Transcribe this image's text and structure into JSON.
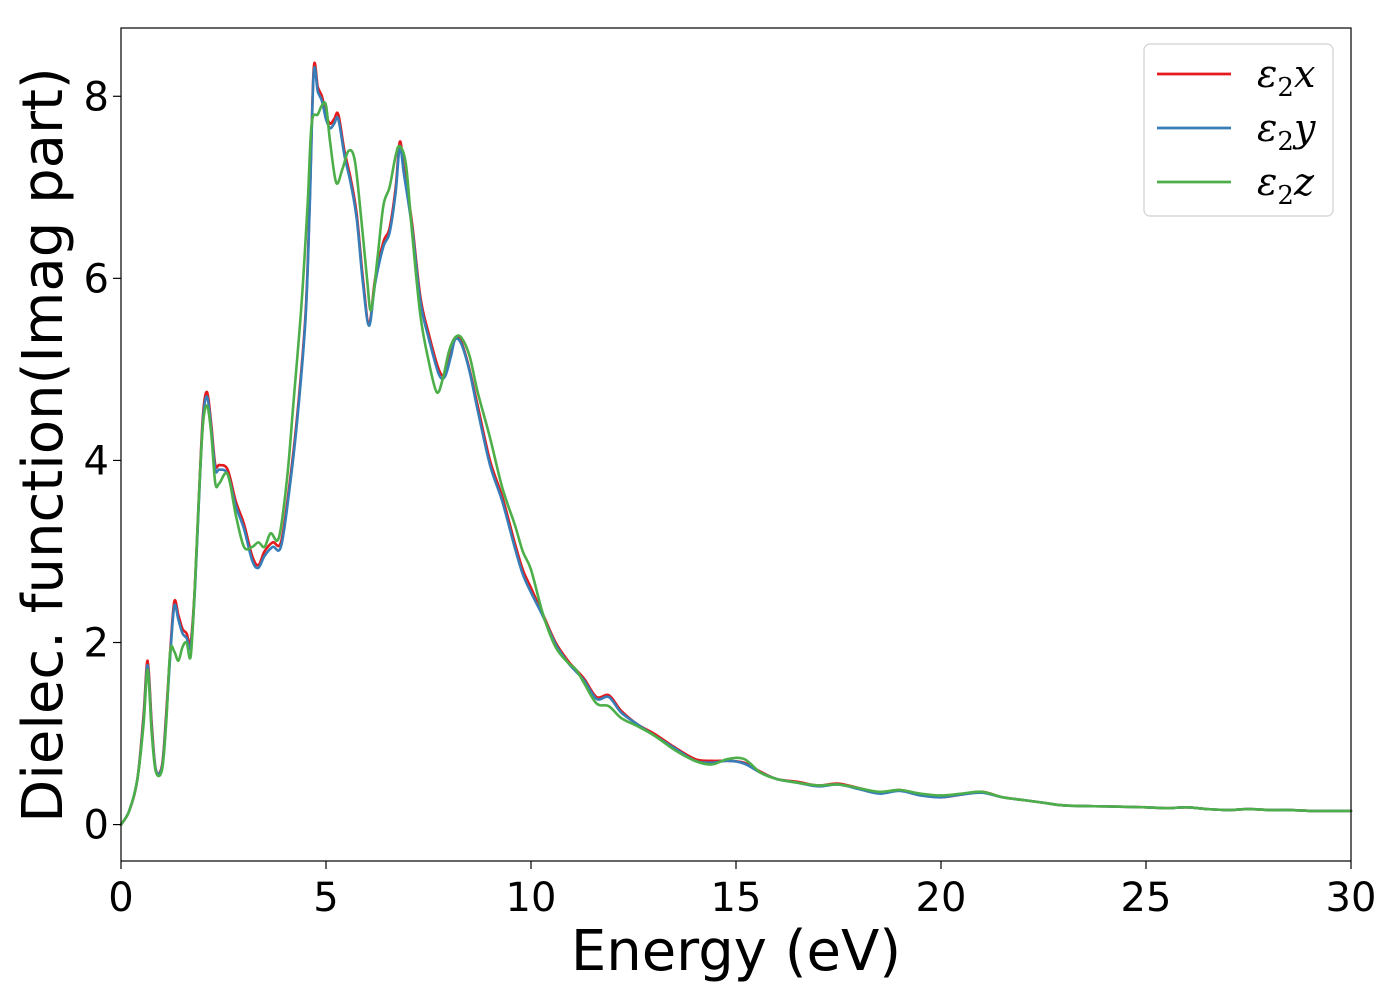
{
  "chart_data": {
    "type": "line",
    "title": "",
    "xlabel": "Energy (eV)",
    "ylabel": "Dielec. function(Imag part)",
    "xlim": [
      0,
      30
    ],
    "ylim": [
      -0.4,
      8.75
    ],
    "xticks": [
      0,
      5,
      10,
      15,
      20,
      25,
      30
    ],
    "yticks": [
      0,
      2,
      4,
      6,
      8
    ],
    "grid": false,
    "legend_position": "top-right",
    "series": [
      {
        "name": "ε2x",
        "legend_base": "ε",
        "legend_sub": "2",
        "legend_var": "x",
        "color": "#e41a1c",
        "x": [
          0,
          0.2,
          0.4,
          0.55,
          0.65,
          0.75,
          0.85,
          1.0,
          1.1,
          1.2,
          1.3,
          1.4,
          1.5,
          1.6,
          1.7,
          1.8,
          1.9,
          2.0,
          2.1,
          2.2,
          2.3,
          2.4,
          2.6,
          2.8,
          3.0,
          3.2,
          3.35,
          3.5,
          3.7,
          3.9,
          4.1,
          4.3,
          4.5,
          4.6,
          4.7,
          4.8,
          4.9,
          5.0,
          5.1,
          5.2,
          5.3,
          5.45,
          5.6,
          5.75,
          5.9,
          6.05,
          6.2,
          6.4,
          6.55,
          6.7,
          6.8,
          6.9,
          7.1,
          7.3,
          7.5,
          7.75,
          7.9,
          8.05,
          8.15,
          8.3,
          8.5,
          8.7,
          9.0,
          9.3,
          9.6,
          9.8,
          10.0,
          10.3,
          10.6,
          10.9,
          11.1,
          11.3,
          11.6,
          11.9,
          12.2,
          12.6,
          13.0,
          13.5,
          14.0,
          14.4,
          14.8,
          15.2,
          15.6,
          16.0,
          16.5,
          17.0,
          17.5,
          18.0,
          18.5,
          19.0,
          19.5,
          20.0,
          20.5,
          21.0,
          21.5,
          22.0,
          22.5,
          23.0,
          24.0,
          25.0,
          25.5,
          26.0,
          26.5,
          27.0,
          27.5,
          28.0,
          28.5,
          29.0,
          29.5,
          30.0
        ],
        "y": [
          0,
          0.15,
          0.5,
          1.2,
          1.8,
          1.1,
          0.6,
          0.65,
          1.2,
          1.9,
          2.45,
          2.3,
          2.15,
          2.1,
          2.0,
          2.6,
          3.6,
          4.5,
          4.75,
          4.4,
          3.95,
          3.95,
          3.9,
          3.55,
          3.3,
          2.95,
          2.85,
          3.0,
          3.1,
          3.1,
          3.7,
          4.5,
          5.6,
          6.8,
          8.3,
          8.1,
          8.0,
          7.8,
          7.7,
          7.75,
          7.8,
          7.4,
          7.1,
          6.7,
          6.0,
          5.5,
          6.0,
          6.4,
          6.55,
          7.0,
          7.5,
          7.2,
          6.6,
          5.8,
          5.4,
          5.0,
          4.95,
          5.2,
          5.35,
          5.3,
          5.0,
          4.6,
          4.0,
          3.6,
          3.1,
          2.8,
          2.6,
          2.3,
          2.0,
          1.8,
          1.7,
          1.6,
          1.4,
          1.42,
          1.25,
          1.1,
          1.0,
          0.85,
          0.72,
          0.7,
          0.7,
          0.68,
          0.58,
          0.5,
          0.47,
          0.43,
          0.45,
          0.4,
          0.35,
          0.38,
          0.33,
          0.3,
          0.33,
          0.36,
          0.3,
          0.27,
          0.24,
          0.21,
          0.2,
          0.19,
          0.18,
          0.19,
          0.17,
          0.16,
          0.17,
          0.16,
          0.16,
          0.15,
          0.15,
          0.15
        ]
      },
      {
        "name": "ε2y",
        "legend_base": "ε",
        "legend_sub": "2",
        "legend_var": "y",
        "color": "#377eb8",
        "x": [
          0,
          0.2,
          0.4,
          0.55,
          0.65,
          0.75,
          0.85,
          1.0,
          1.1,
          1.2,
          1.3,
          1.4,
          1.5,
          1.6,
          1.7,
          1.8,
          1.9,
          2.0,
          2.1,
          2.2,
          2.3,
          2.4,
          2.6,
          2.8,
          3.0,
          3.2,
          3.35,
          3.5,
          3.7,
          3.9,
          4.1,
          4.3,
          4.5,
          4.6,
          4.7,
          4.8,
          4.9,
          5.0,
          5.1,
          5.2,
          5.3,
          5.45,
          5.6,
          5.75,
          5.9,
          6.05,
          6.2,
          6.4,
          6.55,
          6.7,
          6.8,
          6.9,
          7.1,
          7.3,
          7.5,
          7.75,
          7.9,
          8.05,
          8.15,
          8.3,
          8.5,
          8.7,
          9.0,
          9.3,
          9.6,
          9.8,
          10.0,
          10.3,
          10.6,
          10.9,
          11.1,
          11.3,
          11.6,
          11.9,
          12.2,
          12.6,
          13.0,
          13.5,
          14.0,
          14.4,
          14.8,
          15.2,
          15.6,
          16.0,
          16.5,
          17.0,
          17.5,
          18.0,
          18.5,
          19.0,
          19.5,
          20.0,
          20.5,
          21.0,
          21.5,
          22.0,
          22.5,
          23.0,
          24.0,
          25.0,
          25.5,
          26.0,
          26.5,
          27.0,
          27.5,
          28.0,
          28.5,
          29.0,
          29.5,
          30.0
        ],
        "y": [
          0,
          0.15,
          0.5,
          1.15,
          1.75,
          1.05,
          0.6,
          0.63,
          1.15,
          1.85,
          2.4,
          2.25,
          2.1,
          2.05,
          1.95,
          2.55,
          3.55,
          4.45,
          4.7,
          4.35,
          3.9,
          3.9,
          3.85,
          3.5,
          3.25,
          2.9,
          2.82,
          2.95,
          3.05,
          3.05,
          3.65,
          4.45,
          5.55,
          6.75,
          8.25,
          8.05,
          7.95,
          7.75,
          7.65,
          7.7,
          7.75,
          7.35,
          7.05,
          6.65,
          5.95,
          5.48,
          5.95,
          6.35,
          6.5,
          6.95,
          7.45,
          7.15,
          6.55,
          5.75,
          5.35,
          4.95,
          4.92,
          5.15,
          5.33,
          5.28,
          4.98,
          4.55,
          3.95,
          3.55,
          3.05,
          2.75,
          2.55,
          2.28,
          1.98,
          1.78,
          1.68,
          1.58,
          1.38,
          1.4,
          1.23,
          1.1,
          0.98,
          0.84,
          0.7,
          0.68,
          0.7,
          0.67,
          0.57,
          0.5,
          0.46,
          0.42,
          0.44,
          0.39,
          0.34,
          0.37,
          0.32,
          0.3,
          0.33,
          0.35,
          0.3,
          0.27,
          0.24,
          0.21,
          0.2,
          0.19,
          0.18,
          0.19,
          0.17,
          0.16,
          0.17,
          0.16,
          0.16,
          0.15,
          0.15,
          0.15
        ]
      },
      {
        "name": "ε2z",
        "legend_base": "ε",
        "legend_sub": "2",
        "legend_var": "z",
        "color": "#4daf4a",
        "x": [
          0,
          0.2,
          0.4,
          0.55,
          0.65,
          0.75,
          0.85,
          1.0,
          1.1,
          1.2,
          1.3,
          1.4,
          1.5,
          1.6,
          1.7,
          1.8,
          1.9,
          2.0,
          2.1,
          2.2,
          2.3,
          2.4,
          2.6,
          2.8,
          3.0,
          3.2,
          3.35,
          3.5,
          3.65,
          3.85,
          4.05,
          4.2,
          4.4,
          4.55,
          4.65,
          4.8,
          4.9,
          5.0,
          5.1,
          5.25,
          5.4,
          5.55,
          5.7,
          5.85,
          6.0,
          6.1,
          6.25,
          6.4,
          6.55,
          6.7,
          6.8,
          6.95,
          7.1,
          7.3,
          7.5,
          7.7,
          7.85,
          8.0,
          8.15,
          8.3,
          8.5,
          8.7,
          9.0,
          9.3,
          9.6,
          9.8,
          10.0,
          10.3,
          10.6,
          10.9,
          11.1,
          11.3,
          11.6,
          11.9,
          12.2,
          12.6,
          13.0,
          13.5,
          14.0,
          14.4,
          14.8,
          15.2,
          15.6,
          16.0,
          16.5,
          17.0,
          17.5,
          18.0,
          18.5,
          19.0,
          19.5,
          20.0,
          20.5,
          21.0,
          21.5,
          22.0,
          22.5,
          23.0,
          24.0,
          25.0,
          25.5,
          26.0,
          26.5,
          27.0,
          27.5,
          28.0,
          28.5,
          29.0,
          29.5,
          30.0
        ],
        "y": [
          0,
          0.15,
          0.5,
          1.1,
          1.7,
          1.0,
          0.58,
          0.6,
          1.1,
          1.9,
          1.9,
          1.8,
          1.95,
          2.0,
          1.85,
          2.6,
          3.6,
          4.4,
          4.6,
          4.3,
          3.75,
          3.75,
          3.85,
          3.4,
          3.05,
          3.05,
          3.1,
          3.05,
          3.2,
          3.15,
          3.8,
          4.6,
          5.7,
          6.8,
          7.7,
          7.8,
          7.9,
          7.9,
          7.5,
          7.05,
          7.2,
          7.4,
          7.3,
          6.7,
          6.0,
          5.65,
          6.2,
          6.8,
          7.0,
          7.35,
          7.45,
          7.25,
          6.5,
          5.6,
          5.1,
          4.75,
          4.9,
          5.2,
          5.35,
          5.35,
          5.15,
          4.75,
          4.25,
          3.7,
          3.3,
          3.0,
          2.8,
          2.3,
          1.95,
          1.78,
          1.7,
          1.55,
          1.33,
          1.3,
          1.17,
          1.08,
          0.98,
          0.82,
          0.7,
          0.66,
          0.72,
          0.72,
          0.57,
          0.5,
          0.46,
          0.43,
          0.44,
          0.4,
          0.36,
          0.38,
          0.34,
          0.32,
          0.34,
          0.36,
          0.3,
          0.27,
          0.24,
          0.21,
          0.2,
          0.19,
          0.18,
          0.19,
          0.17,
          0.16,
          0.17,
          0.16,
          0.16,
          0.15,
          0.15,
          0.15
        ]
      }
    ]
  }
}
